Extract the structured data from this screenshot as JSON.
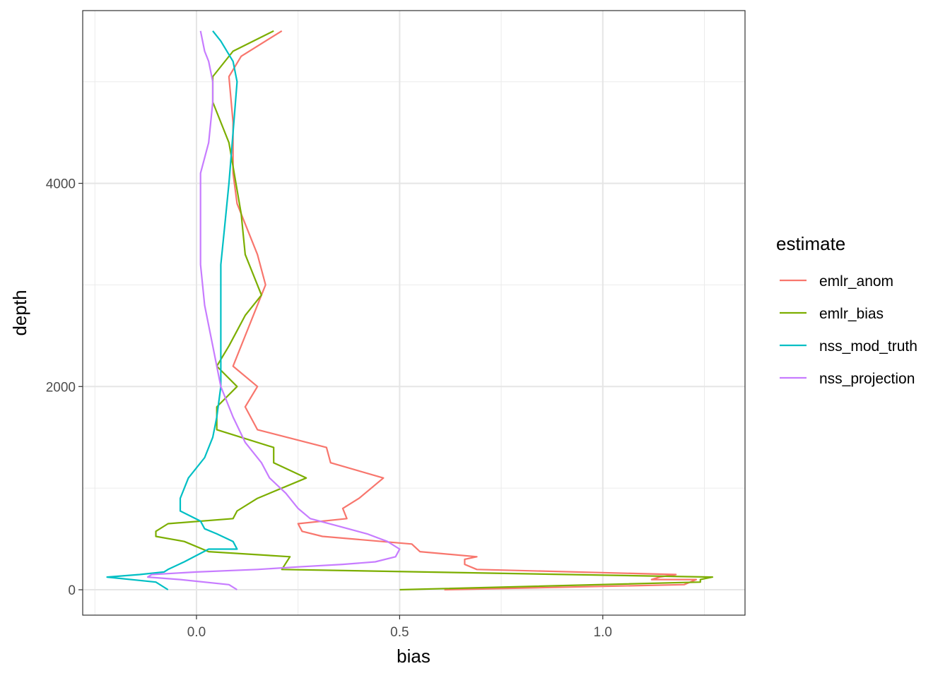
{
  "chart_data": {
    "type": "line",
    "xlabel": "bias",
    "ylabel": "depth",
    "x_ticks": [
      0.0,
      0.5,
      1.0
    ],
    "x_tick_labels": [
      "0.0",
      "0.5",
      "1.0"
    ],
    "y_ticks": [
      0,
      2000,
      4000
    ],
    "y_tick_labels": [
      "0",
      "2000",
      "4000"
    ],
    "xlim": [
      -0.28,
      1.35
    ],
    "ylim": [
      5700,
      -250
    ],
    "y_reversed": true,
    "grid": true,
    "legend": {
      "title": "estimate",
      "position": "right"
    },
    "series": [
      {
        "name": "emlr_anom",
        "color": "#F8766D",
        "points": [
          [
            0.61,
            0
          ],
          [
            1.2,
            50
          ],
          [
            1.23,
            100
          ],
          [
            1.12,
            100
          ],
          [
            1.14,
            125
          ],
          [
            1.18,
            150
          ],
          [
            0.69,
            200
          ],
          [
            0.66,
            250
          ],
          [
            0.66,
            300
          ],
          [
            0.69,
            325
          ],
          [
            0.55,
            375
          ],
          [
            0.53,
            450
          ],
          [
            0.31,
            525
          ],
          [
            0.26,
            575
          ],
          [
            0.25,
            650
          ],
          [
            0.37,
            700
          ],
          [
            0.36,
            800
          ],
          [
            0.4,
            900
          ],
          [
            0.46,
            1100
          ],
          [
            0.33,
            1250
          ],
          [
            0.32,
            1400
          ],
          [
            0.15,
            1575
          ],
          [
            0.12,
            1800
          ],
          [
            0.15,
            2000
          ],
          [
            0.09,
            2200
          ],
          [
            0.12,
            2500
          ],
          [
            0.16,
            2900
          ],
          [
            0.17,
            3000
          ],
          [
            0.15,
            3300
          ],
          [
            0.1,
            3800
          ],
          [
            0.09,
            4100
          ],
          [
            0.09,
            4600
          ],
          [
            0.08,
            5050
          ],
          [
            0.11,
            5250
          ],
          [
            0.21,
            5500
          ]
        ]
      },
      {
        "name": "emlr_bias",
        "color": "#7CAE00",
        "points": [
          [
            0.5,
            0
          ],
          [
            1.24,
            75
          ],
          [
            1.24,
            100
          ],
          [
            1.27,
            125
          ],
          [
            0.21,
            200
          ],
          [
            0.23,
            325
          ],
          [
            0.03,
            375
          ],
          [
            -0.03,
            475
          ],
          [
            -0.1,
            525
          ],
          [
            -0.1,
            575
          ],
          [
            -0.07,
            650
          ],
          [
            0.09,
            700
          ],
          [
            0.1,
            775
          ],
          [
            0.15,
            900
          ],
          [
            0.27,
            1100
          ],
          [
            0.19,
            1250
          ],
          [
            0.19,
            1400
          ],
          [
            0.05,
            1575
          ],
          [
            0.05,
            1800
          ],
          [
            0.1,
            2000
          ],
          [
            0.05,
            2200
          ],
          [
            0.08,
            2400
          ],
          [
            0.12,
            2700
          ],
          [
            0.16,
            2900
          ],
          [
            0.12,
            3300
          ],
          [
            0.11,
            3700
          ],
          [
            0.08,
            4400
          ],
          [
            0.04,
            4800
          ],
          [
            0.04,
            5050
          ],
          [
            0.09,
            5300
          ],
          [
            0.19,
            5500
          ]
        ]
      },
      {
        "name": "nss_mod_truth",
        "color": "#00BFC4",
        "points": [
          [
            -0.07,
            0
          ],
          [
            -0.1,
            75
          ],
          [
            -0.22,
            125
          ],
          [
            -0.14,
            150
          ],
          [
            -0.08,
            175
          ],
          [
            -0.07,
            200
          ],
          [
            -0.03,
            275
          ],
          [
            0.03,
            400
          ],
          [
            0.1,
            400
          ],
          [
            0.09,
            475
          ],
          [
            0.05,
            550
          ],
          [
            0.02,
            600
          ],
          [
            0.01,
            675
          ],
          [
            -0.04,
            775
          ],
          [
            -0.04,
            900
          ],
          [
            -0.02,
            1100
          ],
          [
            0.02,
            1300
          ],
          [
            0.04,
            1500
          ],
          [
            0.05,
            1700
          ],
          [
            0.06,
            2000
          ],
          [
            0.06,
            2300
          ],
          [
            0.06,
            2600
          ],
          [
            0.06,
            2900
          ],
          [
            0.06,
            3200
          ],
          [
            0.07,
            3600
          ],
          [
            0.08,
            4000
          ],
          [
            0.09,
            4500
          ],
          [
            0.1,
            5000
          ],
          [
            0.09,
            5200
          ],
          [
            0.06,
            5400
          ],
          [
            0.04,
            5500
          ]
        ]
      },
      {
        "name": "nss_projection",
        "color": "#C77CFF",
        "points": [
          [
            0.1,
            0
          ],
          [
            0.08,
            50
          ],
          [
            -0.04,
            100
          ],
          [
            -0.12,
            125
          ],
          [
            -0.11,
            150
          ],
          [
            0.0,
            175
          ],
          [
            0.15,
            200
          ],
          [
            0.25,
            225
          ],
          [
            0.36,
            250
          ],
          [
            0.44,
            275
          ],
          [
            0.49,
            325
          ],
          [
            0.5,
            400
          ],
          [
            0.47,
            475
          ],
          [
            0.42,
            550
          ],
          [
            0.35,
            625
          ],
          [
            0.28,
            700
          ],
          [
            0.25,
            800
          ],
          [
            0.22,
            950
          ],
          [
            0.18,
            1100
          ],
          [
            0.16,
            1250
          ],
          [
            0.12,
            1450
          ],
          [
            0.09,
            1700
          ],
          [
            0.06,
            2000
          ],
          [
            0.04,
            2400
          ],
          [
            0.02,
            2800
          ],
          [
            0.01,
            3200
          ],
          [
            0.01,
            3600
          ],
          [
            0.01,
            4100
          ],
          [
            0.03,
            4400
          ],
          [
            0.04,
            4800
          ],
          [
            0.04,
            5000
          ],
          [
            0.03,
            5200
          ],
          [
            0.02,
            5300
          ],
          [
            0.01,
            5500
          ]
        ]
      }
    ]
  }
}
